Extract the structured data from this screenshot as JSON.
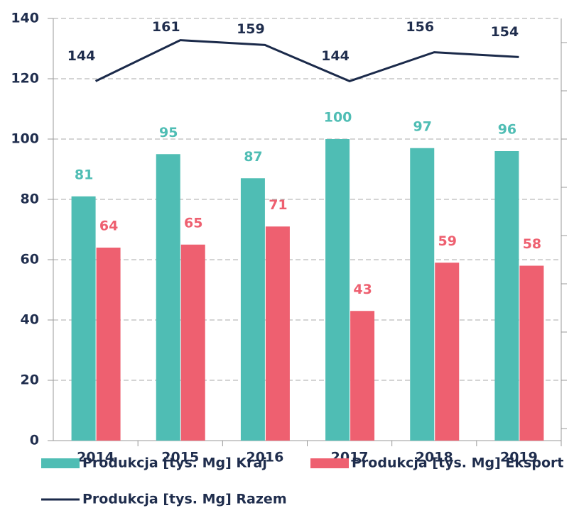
{
  "chart_data": {
    "type": "bar",
    "categories": [
      "2014",
      "2015",
      "2016",
      "2017",
      "2018",
      "2019"
    ],
    "series": [
      {
        "name": "Produkcja [tys. Mg] Kraj",
        "color": "#4fbdb4",
        "values": [
          81,
          95,
          87,
          100,
          97,
          96
        ]
      },
      {
        "name": "Produkcja [tys. Mg] Eksport",
        "color": "#ee6070",
        "values": [
          64,
          65,
          71,
          43,
          59,
          58
        ]
      },
      {
        "name": "Produkcja [tys. Mg] Razem",
        "color": "#1b2a4a",
        "type": "line",
        "axis": "y2",
        "values": [
          144,
          161,
          159,
          144,
          156,
          154
        ]
      }
    ],
    "ylim": [
      0,
      140
    ],
    "yticks": [
      0,
      20,
      40,
      60,
      80,
      100,
      120,
      140
    ],
    "y2lim": [
      -5,
      170
    ],
    "y2ticks": [
      0,
      20,
      40,
      60,
      80,
      100,
      120,
      140,
      160
    ],
    "grid": true
  }
}
